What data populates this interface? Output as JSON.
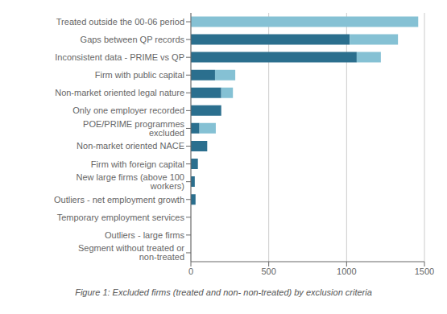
{
  "chart_data": {
    "type": "bar",
    "orientation": "horizontal",
    "stacked": true,
    "title": "Figure 1: Excluded firms (treated and non- non-treated) by exclusion criteria",
    "categories": [
      "Treated outside the 00-06 period",
      "Gaps between QP records",
      "Inconsistent data - PRIME vs QP",
      "Firm with public capital",
      "Non-market oriented legal nature",
      "Only one employer recorded",
      "POE/PRIME programmes excluded",
      "Non-market oriented NACE",
      "Firm with foreign capital",
      "New large firms (above 100 workers)",
      "Outliers - net employment growth",
      "Temporary employment services",
      "Outliers - large firms",
      "Segment without treated or non-treated"
    ],
    "series": [
      {
        "color": "#2b6f8e",
        "values": [
          0,
          1020,
          1065,
          155,
          195,
          195,
          55,
          105,
          45,
          25,
          30,
          0,
          0,
          0
        ]
      },
      {
        "color": "#85c1d4",
        "values": [
          1460,
          310,
          155,
          130,
          75,
          0,
          105,
          0,
          0,
          0,
          0,
          0,
          0,
          0
        ]
      }
    ],
    "xlim": [
      0,
      1500
    ],
    "xticks": [
      0,
      500,
      1000,
      1500
    ],
    "grid": true
  }
}
